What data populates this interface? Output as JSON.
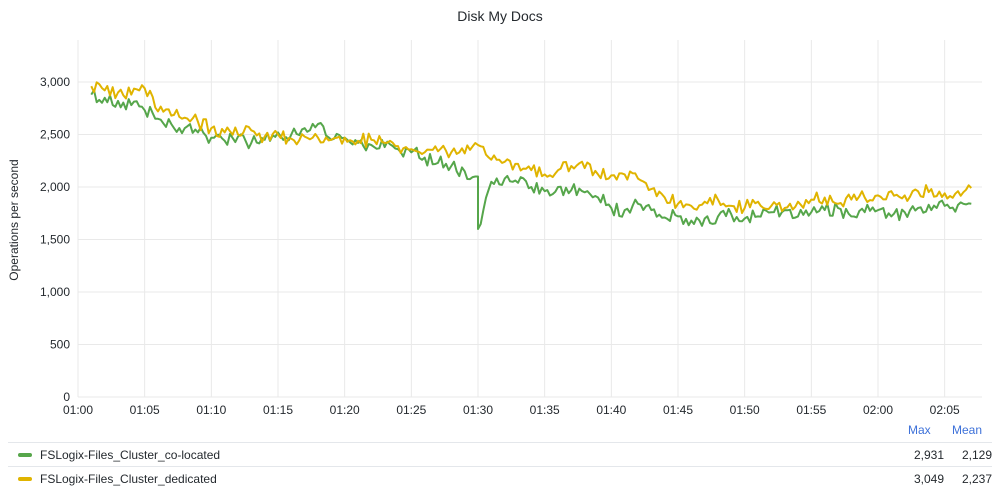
{
  "panel": {
    "title": "Disk My Docs"
  },
  "chart_data": {
    "type": "line",
    "title": "Disk My Docs",
    "xlabel": "",
    "ylabel": "Operations per second",
    "ylim": [
      0,
      3400
    ],
    "yticks": [
      0,
      500,
      1000,
      1500,
      2000,
      2500,
      3000
    ],
    "ytick_labels": [
      "0",
      "500",
      "1,000",
      "1,500",
      "2,000",
      "2,500",
      "3,000"
    ],
    "xlim": [
      "01:00",
      "02:07"
    ],
    "xtick_labels": [
      "01:00",
      "01:05",
      "01:10",
      "01:15",
      "01:20",
      "01:25",
      "01:30",
      "01:35",
      "01:40",
      "01:45",
      "01:50",
      "01:55",
      "02:00",
      "02:05"
    ],
    "grid": true,
    "legend_position": "bottom",
    "series": [
      {
        "name": "FSLogix-Files_Cluster_co-located",
        "color": "#56a64b",
        "x": [
          "01:01",
          "01:02",
          "01:03",
          "01:04",
          "01:05",
          "01:06",
          "01:07",
          "01:08",
          "01:09",
          "01:10",
          "01:11",
          "01:12",
          "01:13",
          "01:14",
          "01:15",
          "01:16",
          "01:17",
          "01:18",
          "01:19",
          "01:20",
          "01:21",
          "01:22",
          "01:23",
          "01:24",
          "01:25",
          "01:26",
          "01:27",
          "01:28",
          "01:29",
          "01:30",
          "01:30",
          "01:31",
          "01:32",
          "01:33",
          "01:34",
          "01:35",
          "01:36",
          "01:37",
          "01:38",
          "01:39",
          "01:40",
          "01:41",
          "01:42",
          "01:43",
          "01:44",
          "01:45",
          "01:46",
          "01:47",
          "01:48",
          "01:49",
          "01:50",
          "01:51",
          "01:52",
          "01:53",
          "01:54",
          "01:55",
          "01:56",
          "01:57",
          "01:58",
          "01:59",
          "02:00",
          "02:01",
          "02:02",
          "02:03",
          "02:04",
          "02:05",
          "02:06",
          "02:07"
        ],
        "values": [
          2880,
          2850,
          2820,
          2780,
          2730,
          2650,
          2600,
          2560,
          2520,
          2470,
          2440,
          2480,
          2420,
          2450,
          2520,
          2500,
          2560,
          2600,
          2450,
          2470,
          2420,
          2400,
          2380,
          2360,
          2330,
          2280,
          2230,
          2200,
          2150,
          2100,
          1600,
          2050,
          2080,
          2040,
          2000,
          1960,
          2000,
          1970,
          1950,
          1900,
          1800,
          1780,
          1840,
          1780,
          1710,
          1720,
          1680,
          1700,
          1720,
          1740,
          1700,
          1720,
          1760,
          1780,
          1720,
          1760,
          1780,
          1800,
          1720,
          1760,
          1780,
          1720,
          1760,
          1800,
          1780,
          1820,
          1830,
          1840
        ]
      },
      {
        "name": "FSLogix-Files_Cluster_dedicated",
        "color": "#e0b400",
        "x": [
          "01:01",
          "01:02",
          "01:03",
          "01:04",
          "01:05",
          "01:06",
          "01:07",
          "01:08",
          "01:09",
          "01:10",
          "01:11",
          "01:12",
          "01:13",
          "01:14",
          "01:15",
          "01:16",
          "01:17",
          "01:18",
          "01:19",
          "01:20",
          "01:21",
          "01:22",
          "01:23",
          "01:24",
          "01:25",
          "01:26",
          "01:27",
          "01:28",
          "01:29",
          "01:30",
          "01:31",
          "01:32",
          "01:33",
          "01:34",
          "01:35",
          "01:36",
          "01:37",
          "01:38",
          "01:39",
          "01:40",
          "01:41",
          "01:42",
          "01:43",
          "01:44",
          "01:45",
          "01:46",
          "01:47",
          "01:48",
          "01:49",
          "01:50",
          "01:51",
          "01:52",
          "01:53",
          "01:54",
          "01:55",
          "01:56",
          "01:57",
          "01:58",
          "01:59",
          "02:00",
          "02:01",
          "02:02",
          "02:03",
          "02:04",
          "02:05",
          "02:06",
          "02:07"
        ],
        "values": [
          2960,
          2920,
          2900,
          2880,
          2940,
          2720,
          2680,
          2660,
          2620,
          2560,
          2520,
          2500,
          2540,
          2480,
          2500,
          2460,
          2480,
          2470,
          2450,
          2470,
          2440,
          2450,
          2420,
          2390,
          2360,
          2330,
          2340,
          2330,
          2320,
          2400,
          2260,
          2240,
          2220,
          2160,
          2120,
          2160,
          2200,
          2180,
          2120,
          2110,
          2120,
          2080,
          1980,
          1900,
          1840,
          1820,
          1860,
          1880,
          1820,
          1800,
          1860,
          1820,
          1800,
          1860,
          1880,
          1900,
          1840,
          1880,
          1900,
          1920,
          1960,
          1920,
          1960,
          1980,
          1940,
          1960,
          1990
        ]
      }
    ]
  },
  "legend": {
    "header": {
      "max": "Max",
      "mean": "Mean"
    },
    "rows": [
      {
        "name": "FSLogix-Files_Cluster_co-located",
        "color": "#56a64b",
        "max": "2,931",
        "mean": "2,129"
      },
      {
        "name": "FSLogix-Files_Cluster_dedicated",
        "color": "#e0b400",
        "max": "3,049",
        "mean": "2,237"
      }
    ]
  }
}
